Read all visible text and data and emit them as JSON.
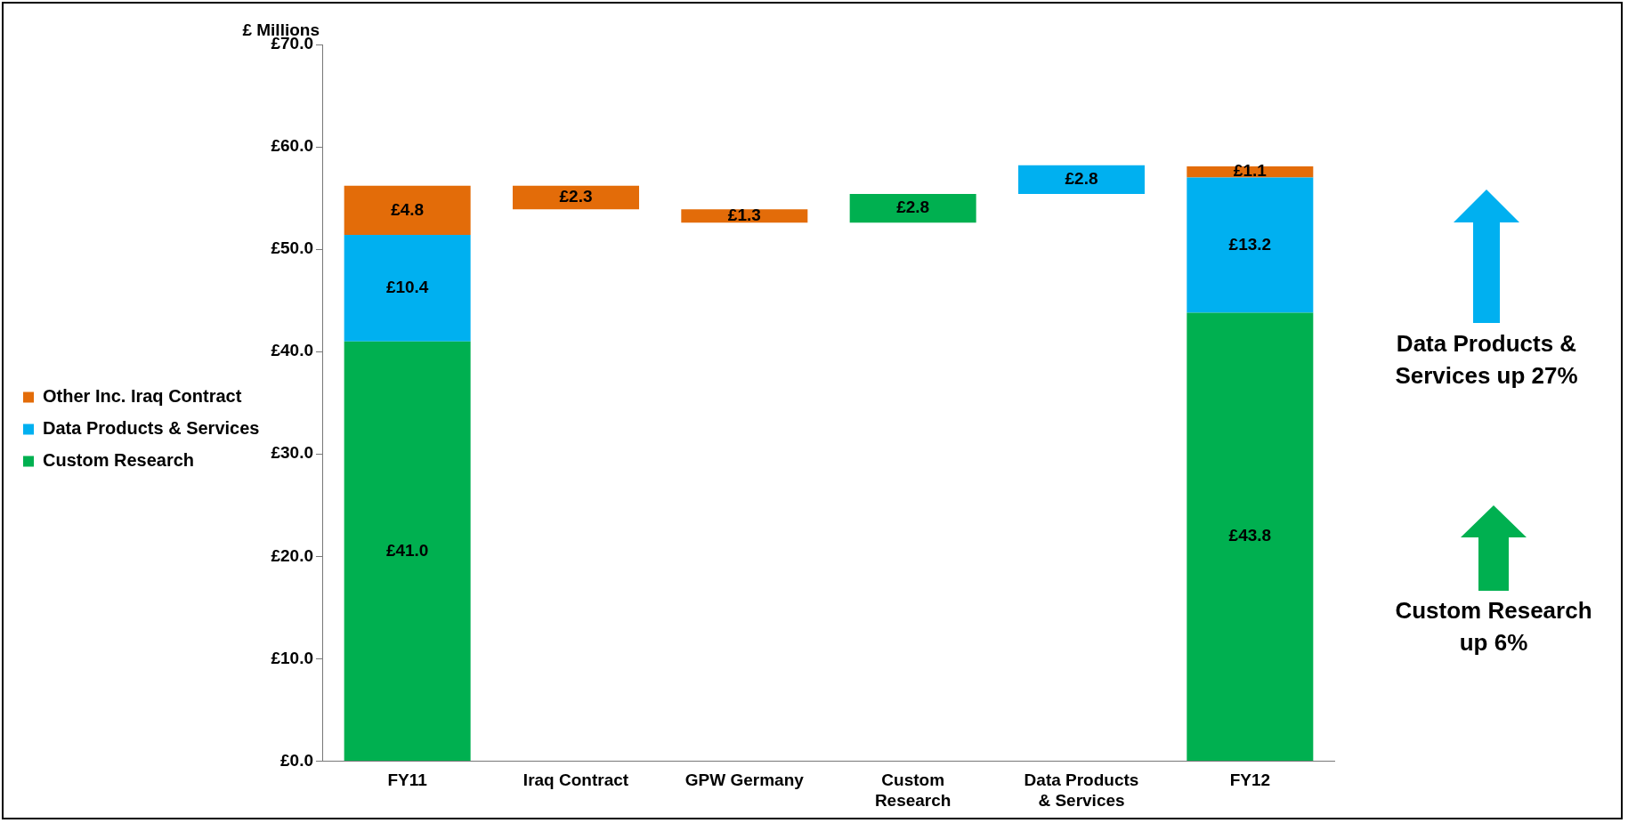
{
  "chart_data": {
    "type": "bar",
    "ylabel": "£ Millions",
    "categories": [
      "FY11",
      "Iraq Contract",
      "GPW Germany",
      "Custom Research",
      "Data Products & Services",
      "FY12"
    ],
    "series": [
      {
        "name": "Custom Research",
        "color": "#00b050",
        "base": [
          0,
          null,
          null,
          52.6,
          null,
          0
        ],
        "values": [
          41.0,
          null,
          null,
          2.8,
          null,
          43.8
        ],
        "value_labels": [
          "£41.0",
          null,
          null,
          "£2.8",
          null,
          "£43.8"
        ]
      },
      {
        "name": "Data Products & Services",
        "color": "#00b0f0",
        "base": [
          41.0,
          null,
          null,
          null,
          55.4,
          43.8
        ],
        "values": [
          10.4,
          null,
          null,
          null,
          2.8,
          13.2
        ],
        "value_labels": [
          "£10.4",
          null,
          null,
          null,
          "£2.8",
          "£13.2"
        ]
      },
      {
        "name": "Other Inc. Iraq Contract",
        "color": "#e36c09",
        "base": [
          51.4,
          53.9,
          52.6,
          null,
          null,
          57.0
        ],
        "values": [
          4.8,
          2.3,
          1.3,
          null,
          null,
          1.1
        ],
        "value_labels": [
          "£4.8",
          "£2.3",
          "£1.3",
          null,
          null,
          "£1.1"
        ]
      }
    ],
    "ylim": [
      0,
      70
    ],
    "yticks": [
      {
        "value": 0,
        "label": "£0.0"
      },
      {
        "value": 10,
        "label": "£10.0"
      },
      {
        "value": 20,
        "label": "£20.0"
      },
      {
        "value": 30,
        "label": "£30.0"
      },
      {
        "value": 40,
        "label": "£40.0"
      },
      {
        "value": 50,
        "label": "£50.0"
      },
      {
        "value": 60,
        "label": "£60.0"
      },
      {
        "value": 70,
        "label": "£70.0"
      }
    ],
    "grid": false,
    "legend": "left",
    "annotations": [
      "Data Products & Services up 27%",
      "Custom Research up 6%"
    ]
  }
}
